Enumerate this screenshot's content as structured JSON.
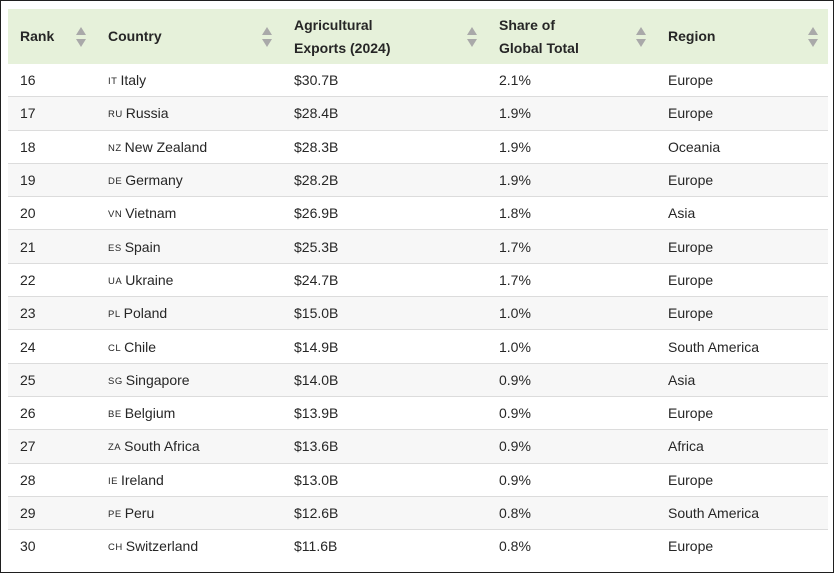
{
  "table": {
    "headers": [
      {
        "key": "rank",
        "label_line1": "Rank",
        "label_line2": ""
      },
      {
        "key": "country",
        "label_line1": "Country",
        "label_line2": ""
      },
      {
        "key": "exports",
        "label_line1": "Agricultural",
        "label_line2": "Exports (2024)"
      },
      {
        "key": "share",
        "label_line1": "Share of",
        "label_line2": "Global Total"
      },
      {
        "key": "region",
        "label_line1": "Region",
        "label_line2": ""
      }
    ],
    "sort_icon": "sort-up-down-icon",
    "header_bg": "#e6f1da",
    "rows": [
      {
        "rank": "16",
        "code": "IT",
        "country": "Italy",
        "exports": "$30.7B",
        "share": "2.1%",
        "region": "Europe"
      },
      {
        "rank": "17",
        "code": "RU",
        "country": "Russia",
        "exports": "$28.4B",
        "share": "1.9%",
        "region": "Europe"
      },
      {
        "rank": "18",
        "code": "NZ",
        "country": "New Zealand",
        "exports": "$28.3B",
        "share": "1.9%",
        "region": "Oceania"
      },
      {
        "rank": "19",
        "code": "DE",
        "country": "Germany",
        "exports": "$28.2B",
        "share": "1.9%",
        "region": "Europe"
      },
      {
        "rank": "20",
        "code": "VN",
        "country": "Vietnam",
        "exports": "$26.9B",
        "share": "1.8%",
        "region": "Asia"
      },
      {
        "rank": "21",
        "code": "ES",
        "country": "Spain",
        "exports": "$25.3B",
        "share": "1.7%",
        "region": "Europe"
      },
      {
        "rank": "22",
        "code": "UA",
        "country": "Ukraine",
        "exports": "$24.7B",
        "share": "1.7%",
        "region": "Europe"
      },
      {
        "rank": "23",
        "code": "PL",
        "country": "Poland",
        "exports": "$15.0B",
        "share": "1.0%",
        "region": "Europe"
      },
      {
        "rank": "24",
        "code": "CL",
        "country": "Chile",
        "exports": "$14.9B",
        "share": "1.0%",
        "region": "South America"
      },
      {
        "rank": "25",
        "code": "SG",
        "country": "Singapore",
        "exports": "$14.0B",
        "share": "0.9%",
        "region": "Asia"
      },
      {
        "rank": "26",
        "code": "BE",
        "country": "Belgium",
        "exports": "$13.9B",
        "share": "0.9%",
        "region": "Europe"
      },
      {
        "rank": "27",
        "code": "ZA",
        "country": "South Africa",
        "exports": "$13.6B",
        "share": "0.9%",
        "region": "Africa"
      },
      {
        "rank": "28",
        "code": "IE",
        "country": "Ireland",
        "exports": "$13.0B",
        "share": "0.9%",
        "region": "Europe"
      },
      {
        "rank": "29",
        "code": "PE",
        "country": "Peru",
        "exports": "$12.6B",
        "share": "0.8%",
        "region": "South America"
      },
      {
        "rank": "30",
        "code": "CH",
        "country": "Switzerland",
        "exports": "$11.6B",
        "share": "0.8%",
        "region": "Europe"
      }
    ]
  }
}
